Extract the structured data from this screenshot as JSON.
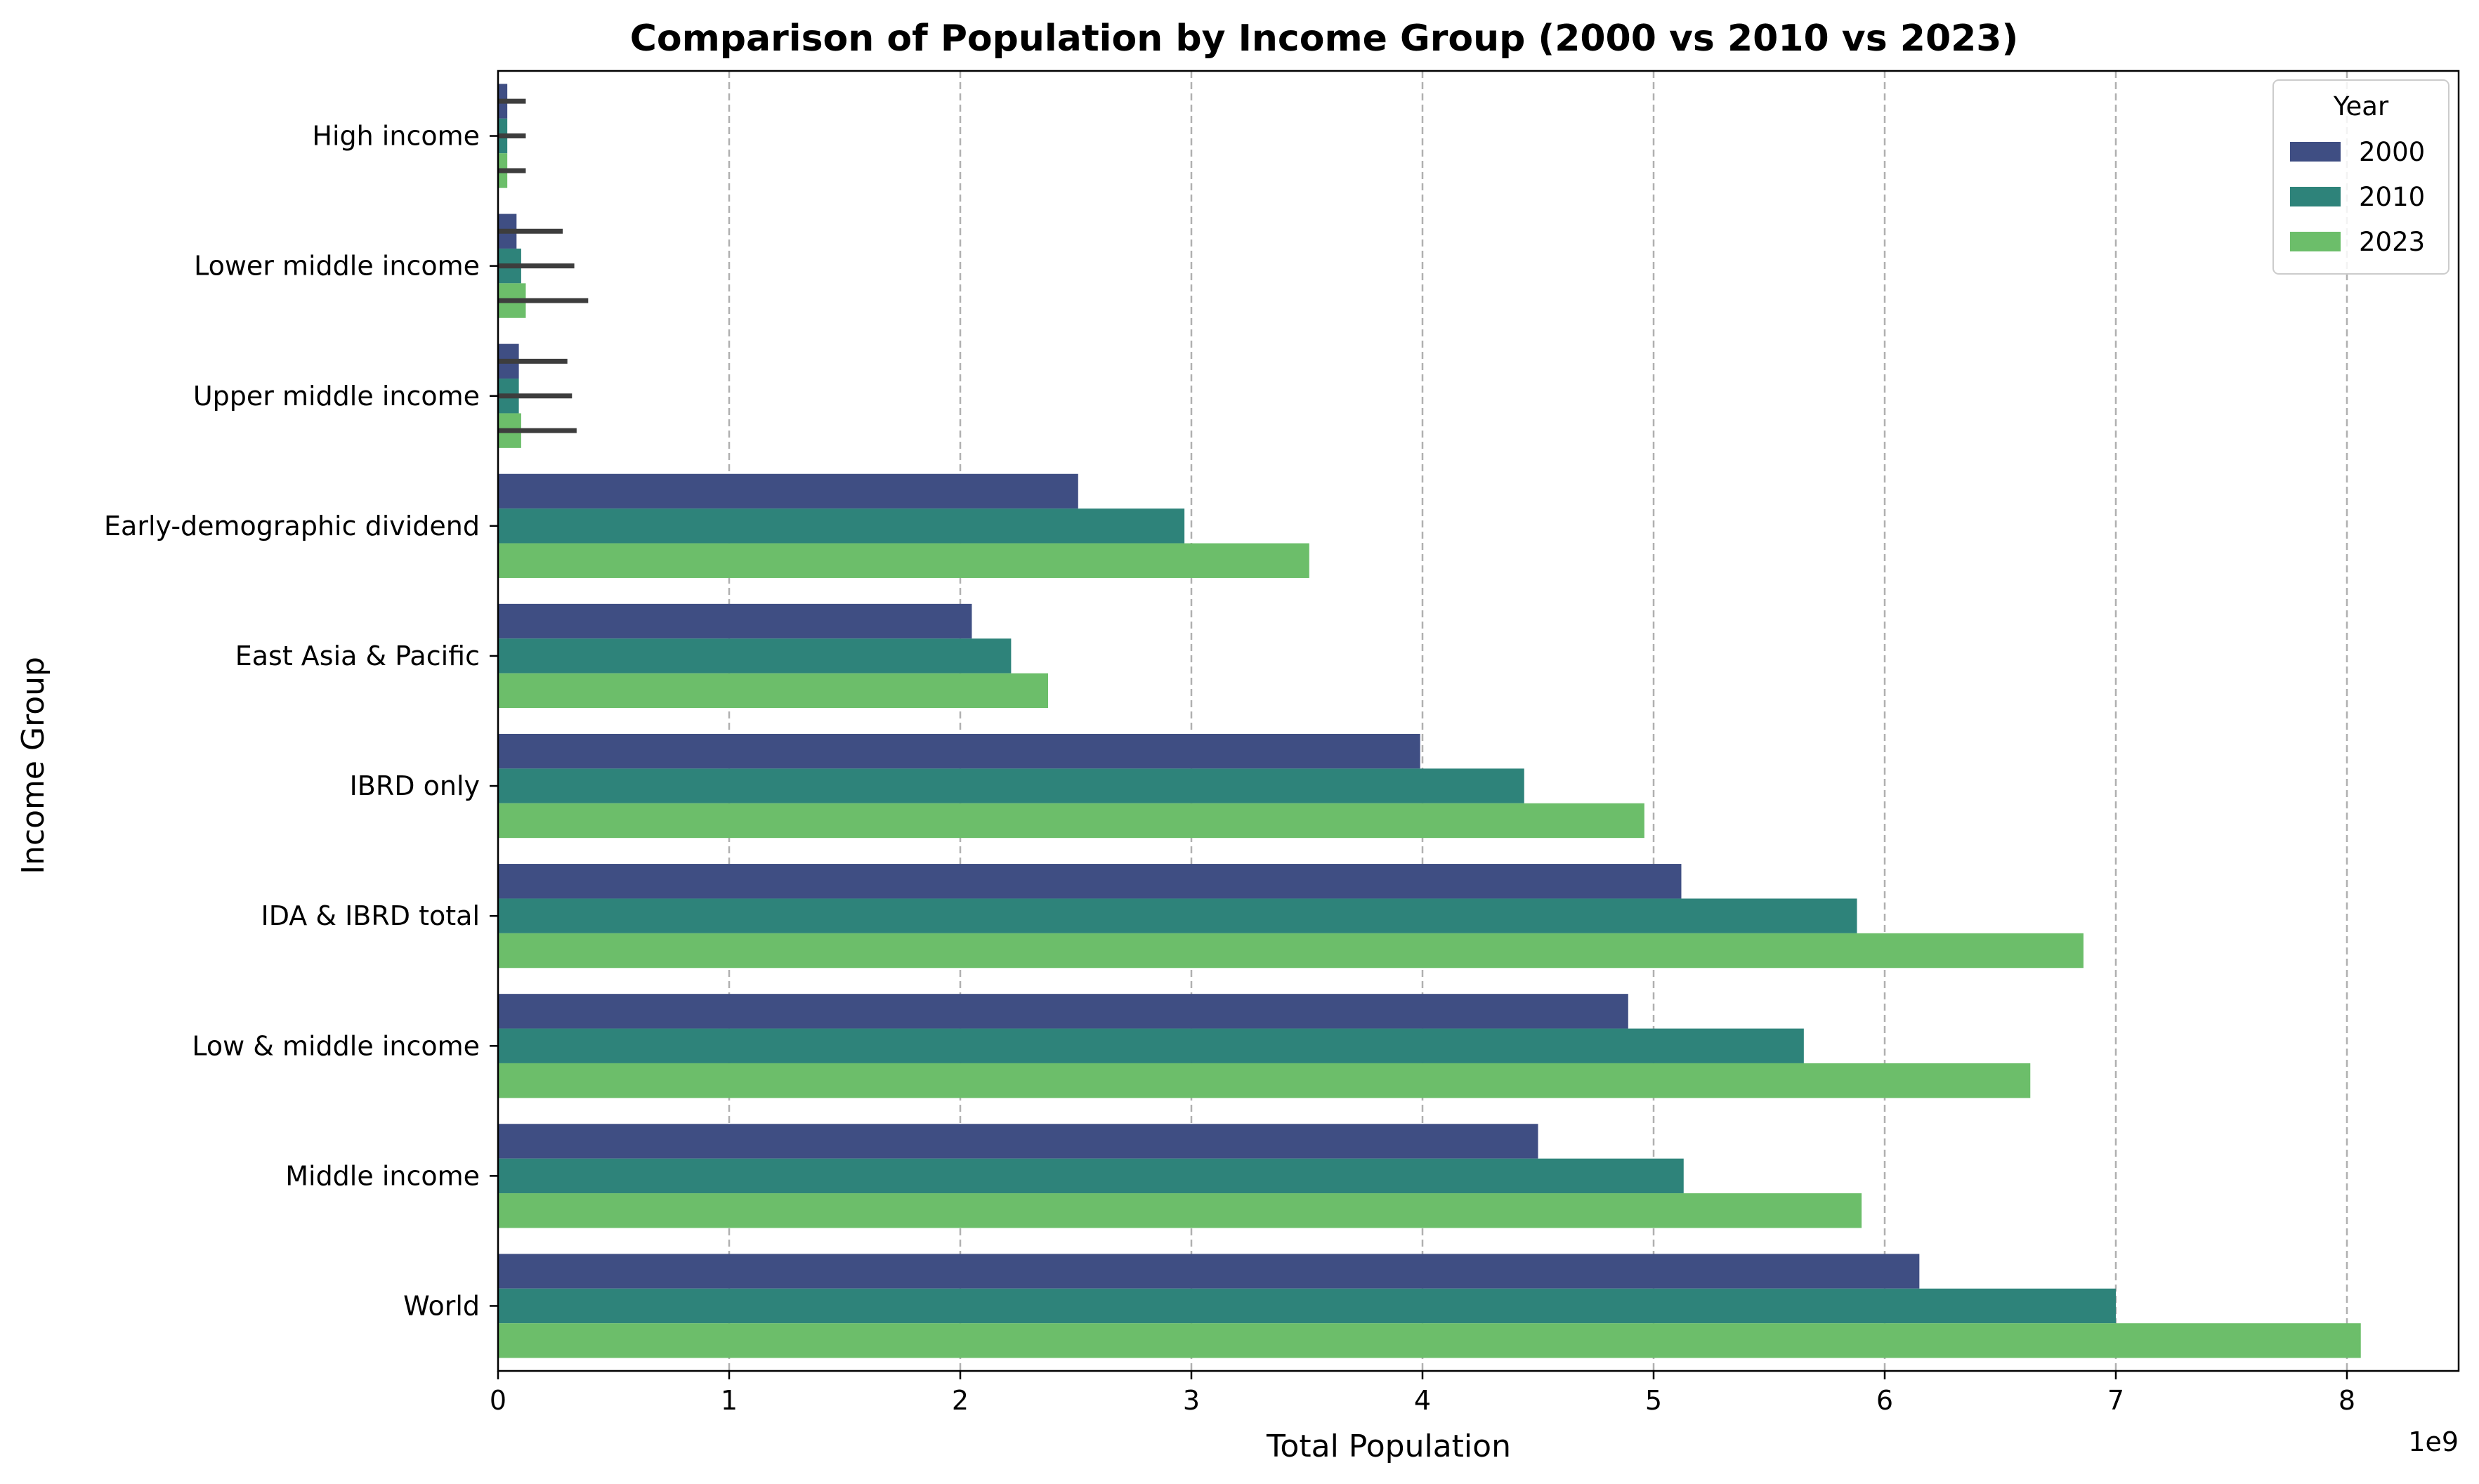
{
  "chart_data": {
    "type": "bar",
    "orientation": "horizontal",
    "title": "Comparison of Population by Income Group (2000 vs 2010 vs 2023)",
    "xlabel": "Total Population",
    "ylabel": "Income Group",
    "x_multiplier_label": "1e9",
    "xlim": [
      0,
      8.45
    ],
    "xticks": [
      0,
      1,
      2,
      3,
      4,
      5,
      6,
      7,
      8
    ],
    "grid": "x-dashed",
    "legend": {
      "title": "Year",
      "placement": "top-right",
      "entries": [
        "2000",
        "2010",
        "2023"
      ]
    },
    "categories": [
      "High income",
      "Lower middle income",
      "Upper middle income",
      "Early-demographic dividend",
      "East Asia & Pacific",
      "IBRD only",
      "IDA & IBRD total",
      "Low & middle income",
      "Middle income",
      "World"
    ],
    "series": [
      {
        "name": "2000",
        "color": "#3f4e83",
        "values": [
          0.04,
          0.08,
          0.09,
          2.51,
          2.05,
          3.99,
          5.12,
          4.89,
          4.5,
          6.15
        ],
        "error": [
          0.08,
          0.2,
          0.21,
          null,
          null,
          null,
          null,
          null,
          null,
          null
        ]
      },
      {
        "name": "2010",
        "color": "#2e837a",
        "values": [
          0.04,
          0.1,
          0.09,
          2.97,
          2.22,
          4.44,
          5.88,
          5.65,
          5.13,
          7.0
        ],
        "error": [
          0.08,
          0.23,
          0.23,
          null,
          null,
          null,
          null,
          null,
          null,
          null
        ]
      },
      {
        "name": "2023",
        "color": "#6cbe6a",
        "values": [
          0.04,
          0.12,
          0.1,
          3.51,
          2.38,
          4.96,
          6.86,
          6.63,
          5.9,
          8.06
        ],
        "error": [
          0.08,
          0.27,
          0.24,
          null,
          null,
          null,
          null,
          null,
          null,
          null
        ]
      }
    ]
  }
}
